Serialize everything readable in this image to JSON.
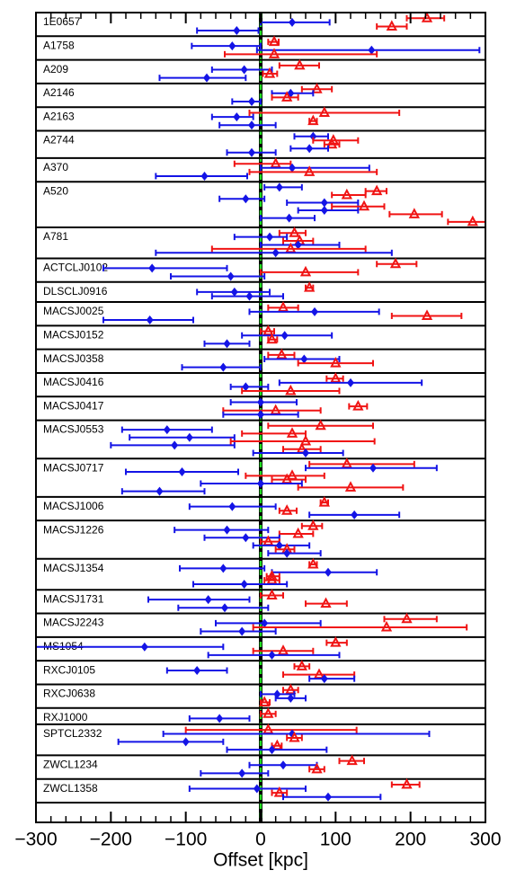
{
  "chart_data": {
    "type": "forest",
    "xlabel": "Offset [kpc]",
    "xlim": [
      -300,
      300
    ],
    "xticks": [
      {
        "value": -300,
        "label": "−300"
      },
      {
        "value": -200,
        "label": "−200"
      },
      {
        "value": -100,
        "label": "−100"
      },
      0,
      100,
      200,
      300
    ],
    "xminorticks": [
      -280,
      -260,
      -240,
      -220,
      -180,
      -160,
      -140,
      -120,
      -80,
      -60,
      -40,
      -20,
      20,
      40,
      60,
      80,
      120,
      140,
      160,
      180,
      220,
      240,
      260,
      280
    ],
    "zero_line_color": "#22dd22",
    "series": [
      {
        "color": "#1414e6",
        "marker": "diamond"
      },
      {
        "color": "#f01414",
        "marker": "triangle"
      }
    ],
    "categories": [
      "1E0657",
      "A1758",
      "A209",
      "A2146",
      "A2163",
      "A2744",
      "A370",
      "A520",
      "A781",
      "ACTCLJ0102",
      "DLSCLJ0916",
      "MACSJ0025",
      "MACSJ0152",
      "MACSJ0358",
      "MACSJ0416",
      "MACSJ0417",
      "MACSJ0553",
      "MACSJ0717",
      "MACSJ1006",
      "MACSJ1226",
      "MACSJ1354",
      "MACSJ1731",
      "MACSJ2243",
      "MS1054",
      "RXCJ0105",
      "RXCJ0638",
      "RXJ1000",
      "SPTCL2332",
      "ZWCL1234",
      "ZWCL1358"
    ],
    "entries": [
      [
        [
          1,
          222,
          195,
          245
        ],
        [
          0,
          42,
          0,
          92
        ],
        [
          1,
          175,
          155,
          195
        ],
        [
          0,
          -32,
          -85,
          -3
        ]
      ],
      [
        [
          1,
          18,
          10,
          24
        ],
        [
          0,
          -38,
          -92,
          0
        ],
        [
          0,
          148,
          -5,
          292
        ],
        [
          1,
          18,
          -48,
          155
        ]
      ],
      [
        [
          1,
          52,
          25,
          78
        ],
        [
          0,
          -22,
          -65,
          15
        ],
        [
          1,
          12,
          3,
          22
        ],
        [
          0,
          -72,
          -135,
          -20
        ]
      ],
      [
        [
          1,
          75,
          55,
          95
        ],
        [
          0,
          40,
          15,
          70
        ],
        [
          1,
          35,
          15,
          50
        ],
        [
          0,
          -12,
          -38,
          0
        ]
      ],
      [
        [
          1,
          85,
          -15,
          185
        ],
        [
          0,
          -32,
          -65,
          -10
        ],
        [
          1,
          70,
          65,
          75
        ],
        [
          0,
          -12,
          -55,
          20
        ]
      ],
      [
        [
          0,
          70,
          45,
          90
        ],
        [
          1,
          97,
          70,
          130
        ],
        [
          1,
          95,
          85,
          105
        ],
        [
          0,
          65,
          40,
          90
        ],
        [
          0,
          -12,
          -45,
          20
        ]
      ],
      [
        [
          1,
          20,
          -35,
          40
        ],
        [
          0,
          42,
          0,
          145
        ],
        [
          1,
          65,
          -15,
          155
        ],
        [
          0,
          -75,
          -140,
          -18
        ]
      ],
      [
        [
          0,
          25,
          5,
          55
        ],
        [
          1,
          155,
          140,
          168
        ],
        [
          1,
          115,
          95,
          140
        ],
        [
          0,
          -20,
          -55,
          5
        ],
        [
          0,
          85,
          35,
          130
        ],
        [
          1,
          138,
          95,
          165
        ],
        [
          0,
          85,
          50,
          130
        ],
        [
          1,
          205,
          172,
          242
        ],
        [
          0,
          38,
          0,
          72
        ],
        [
          1,
          283,
          250,
          300
        ]
      ],
      [
        [
          1,
          45,
          25,
          60
        ],
        [
          0,
          12,
          -35,
          35
        ],
        [
          1,
          52,
          30,
          70
        ],
        [
          0,
          50,
          0,
          105
        ],
        [
          1,
          40,
          -65,
          140
        ],
        [
          0,
          20,
          -140,
          175
        ]
      ],
      [
        [
          1,
          180,
          155,
          208
        ],
        [
          0,
          -145,
          -210,
          -45
        ],
        [
          1,
          60,
          0,
          130
        ],
        [
          0,
          -40,
          -120,
          5
        ]
      ],
      [
        [
          1,
          65,
          60,
          70
        ],
        [
          0,
          -35,
          -85,
          12
        ],
        [
          0,
          -15,
          -65,
          30
        ]
      ],
      [
        [
          1,
          30,
          10,
          50
        ],
        [
          0,
          72,
          -15,
          158
        ],
        [
          1,
          222,
          175,
          268
        ],
        [
          0,
          -148,
          -210,
          -90
        ]
      ],
      [
        [
          1,
          10,
          0,
          18
        ],
        [
          0,
          32,
          -25,
          95
        ],
        [
          1,
          15,
          10,
          22
        ],
        [
          0,
          -45,
          -75,
          -15
        ]
      ],
      [
        [
          1,
          28,
          10,
          45
        ],
        [
          0,
          58,
          5,
          105
        ],
        [
          1,
          100,
          50,
          150
        ],
        [
          0,
          -50,
          -105,
          0
        ]
      ],
      [
        [
          1,
          100,
          88,
          110
        ],
        [
          0,
          120,
          25,
          215
        ],
        [
          0,
          -20,
          -40,
          10
        ],
        [
          1,
          40,
          -25,
          105
        ]
      ],
      [
        [
          0,
          0,
          -40,
          48
        ],
        [
          1,
          130,
          118,
          142
        ],
        [
          1,
          20,
          -50,
          80
        ],
        [
          0,
          0,
          -50,
          50
        ]
      ],
      [
        [
          1,
          80,
          10,
          150
        ],
        [
          0,
          -125,
          -185,
          -65
        ],
        [
          1,
          42,
          -25,
          60
        ],
        [
          0,
          -95,
          -175,
          -35
        ],
        [
          1,
          60,
          -40,
          152
        ],
        [
          0,
          -115,
          -200,
          -35
        ],
        [
          1,
          55,
          30,
          80
        ],
        [
          0,
          60,
          -10,
          110
        ]
      ],
      [
        [
          1,
          115,
          65,
          205
        ],
        [
          0,
          150,
          60,
          235
        ],
        [
          0,
          -105,
          -180,
          -30
        ],
        [
          1,
          42,
          -20,
          85
        ],
        [
          1,
          35,
          15,
          60
        ],
        [
          0,
          0,
          -80,
          55
        ],
        [
          1,
          120,
          50,
          190
        ],
        [
          0,
          -135,
          -185,
          -75
        ]
      ],
      [
        [
          1,
          85,
          80,
          90
        ],
        [
          0,
          -38,
          -95,
          20
        ],
        [
          1,
          35,
          25,
          48
        ],
        [
          0,
          125,
          65,
          185
        ]
      ],
      [
        [
          1,
          70,
          55,
          82
        ],
        [
          0,
          -45,
          -115,
          10
        ],
        [
          1,
          50,
          25,
          70
        ],
        [
          0,
          -20,
          -75,
          25
        ],
        [
          1,
          10,
          0,
          25
        ],
        [
          0,
          25,
          -10,
          65
        ],
        [
          1,
          35,
          20,
          45
        ],
        [
          0,
          35,
          10,
          80
        ]
      ],
      [
        [
          1,
          70,
          65,
          75
        ],
        [
          0,
          -50,
          -108,
          5
        ],
        [
          0,
          90,
          15,
          155
        ],
        [
          1,
          15,
          8,
          25
        ],
        [
          1,
          15,
          5,
          25
        ],
        [
          0,
          -22,
          -90,
          35
        ]
      ],
      [
        [
          1,
          15,
          0,
          30
        ],
        [
          0,
          -70,
          -150,
          -15
        ],
        [
          1,
          87,
          60,
          115
        ],
        [
          0,
          -48,
          -110,
          10
        ]
      ],
      [
        [
          1,
          195,
          165,
          235
        ],
        [
          0,
          5,
          -60,
          80
        ],
        [
          1,
          168,
          -10,
          275
        ],
        [
          0,
          -25,
          -80,
          20
        ]
      ],
      [
        [
          1,
          100,
          88,
          115
        ],
        [
          0,
          -155,
          -300,
          -50
        ],
        [
          1,
          30,
          -10,
          70
        ],
        [
          0,
          15,
          -70,
          105
        ]
      ],
      [
        [
          1,
          55,
          45,
          65
        ],
        [
          0,
          -85,
          -125,
          -45
        ],
        [
          1,
          78,
          30,
          125
        ],
        [
          0,
          85,
          65,
          125
        ]
      ],
      [
        [
          1,
          40,
          30,
          50
        ],
        [
          0,
          22,
          0,
          45
        ],
        [
          0,
          40,
          20,
          60
        ],
        [
          1,
          5,
          0,
          12
        ]
      ],
      [
        [
          1,
          10,
          0,
          20
        ],
        [
          0,
          -55,
          -95,
          -15
        ]
      ],
      [
        [
          1,
          10,
          -100,
          128
        ],
        [
          0,
          42,
          -130,
          225
        ],
        [
          1,
          45,
          35,
          55
        ],
        [
          0,
          -100,
          -190,
          -50
        ],
        [
          1,
          22,
          15,
          28
        ],
        [
          0,
          15,
          -45,
          88
        ]
      ],
      [
        [
          1,
          122,
          105,
          138
        ],
        [
          0,
          30,
          -15,
          75
        ],
        [
          1,
          75,
          65,
          85
        ],
        [
          0,
          -25,
          -80,
          10
        ]
      ],
      [
        [
          1,
          195,
          175,
          212
        ],
        [
          0,
          -5,
          -95,
          60
        ],
        [
          1,
          25,
          15,
          35
        ],
        [
          0,
          90,
          30,
          160
        ]
      ]
    ]
  }
}
